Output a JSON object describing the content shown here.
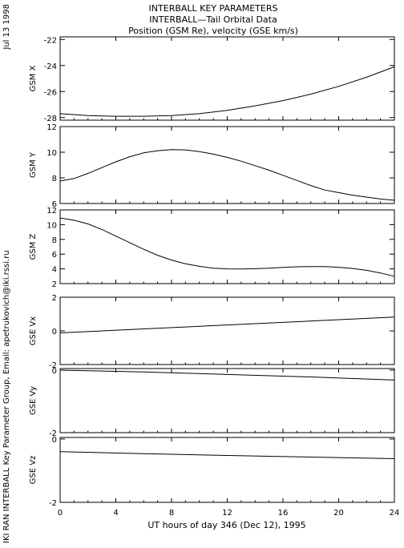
{
  "header": {
    "line1": "INTERBALL KEY PARAMETERS",
    "line2": "INTERBALL—Tail Orbital Data",
    "line3": "Position (GSM Re), velocity (GSE km/s)"
  },
  "side": {
    "date": "Jul 13 1998",
    "credit": "IKI RAN INTERBALL Key Parameter Group, Email: apetrukovich@iki.rssi.ru"
  },
  "chart_data": {
    "type": "line",
    "xlabel": "UT hours of day 346 (Dec 12), 1995",
    "xlim": [
      0,
      24
    ],
    "xticks": [
      0,
      4,
      8,
      12,
      16,
      20,
      24
    ],
    "panels": [
      {
        "ylabel": "GSM X",
        "ylim": [
          -28.2,
          -21.8
        ],
        "yticks": [
          -28,
          -26,
          -24,
          -22
        ],
        "x": [
          0,
          2,
          4,
          6,
          8,
          10,
          12,
          14,
          16,
          18,
          20,
          22,
          24
        ],
        "values": [
          -27.7,
          -27.85,
          -27.9,
          -27.9,
          -27.85,
          -27.7,
          -27.45,
          -27.1,
          -26.7,
          -26.2,
          -25.6,
          -24.9,
          -24.1
        ]
      },
      {
        "ylabel": "GSM Y",
        "ylim": [
          6,
          12
        ],
        "yticks": [
          6,
          8,
          10,
          12
        ],
        "x": [
          0,
          1,
          2,
          3,
          4,
          5,
          6,
          7,
          8,
          9,
          10,
          11,
          12,
          13,
          14,
          15,
          16,
          17,
          18,
          19,
          20,
          21,
          22,
          23,
          24
        ],
        "values": [
          7.75,
          7.95,
          8.35,
          8.8,
          9.25,
          9.65,
          9.95,
          10.12,
          10.2,
          10.18,
          10.05,
          9.85,
          9.6,
          9.3,
          8.95,
          8.6,
          8.2,
          7.8,
          7.4,
          7.05,
          6.85,
          6.65,
          6.5,
          6.35,
          6.25
        ]
      },
      {
        "ylabel": "GSM Z",
        "ylim": [
          2,
          12
        ],
        "yticks": [
          2,
          4,
          6,
          8,
          10,
          12
        ],
        "x": [
          0,
          1,
          2,
          3,
          4,
          5,
          6,
          7,
          8,
          9,
          10,
          11,
          12,
          13,
          14,
          15,
          16,
          17,
          18,
          19,
          20,
          21,
          22,
          23,
          24
        ],
        "values": [
          10.9,
          10.6,
          10.1,
          9.35,
          8.45,
          7.55,
          6.65,
          5.85,
          5.2,
          4.7,
          4.35,
          4.1,
          4.0,
          3.98,
          4.02,
          4.1,
          4.2,
          4.28,
          4.32,
          4.3,
          4.22,
          4.05,
          3.8,
          3.45,
          3.0
        ]
      },
      {
        "ylabel": "GSE Vx",
        "ylim": [
          -2,
          2
        ],
        "yticks": [
          -2,
          0,
          2
        ],
        "x": [
          0,
          24
        ],
        "values": [
          -0.12,
          0.82
        ]
      },
      {
        "ylabel": "GSE Vy",
        "ylim": [
          -2,
          0.05
        ],
        "yticks": [
          -2,
          0
        ],
        "x": [
          0,
          6,
          12,
          18,
          24
        ],
        "values": [
          0.0,
          -0.06,
          -0.14,
          -0.22,
          -0.32
        ]
      },
      {
        "ylabel": "GSE Vz",
        "ylim": [
          -2,
          0.05
        ],
        "yticks": [
          -2,
          0
        ],
        "x": [
          0,
          6,
          12,
          18,
          24
        ],
        "values": [
          -0.4,
          -0.46,
          -0.52,
          -0.57,
          -0.62
        ]
      }
    ]
  }
}
